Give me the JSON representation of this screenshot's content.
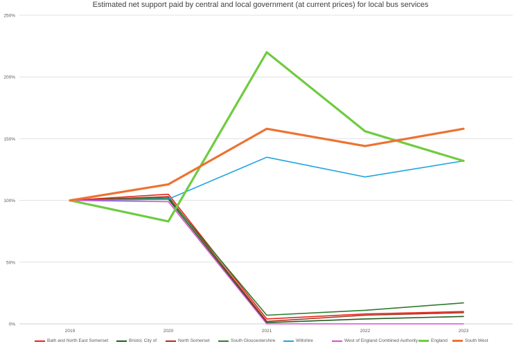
{
  "chart_data": {
    "type": "line",
    "title": "Estimated net support paid by central and local government (at current prices) for local bus services",
    "xlabel": "",
    "ylabel": "",
    "categories": [
      "2019",
      "2020",
      "2021",
      "2022",
      "2023"
    ],
    "ylim": [
      0,
      250
    ],
    "y_ticks": [
      "0%",
      "50%",
      "100%",
      "150%",
      "200%",
      "250%"
    ],
    "grid": "horizontal",
    "legend_position": "bottom",
    "series": [
      {
        "name": "Bath and North East Somerset",
        "color": "#e8231f",
        "width": 1.6,
        "values": [
          100,
          105,
          4,
          8,
          10
        ]
      },
      {
        "name": "Bristol, City of",
        "color": "#1e5c1e",
        "width": 1.6,
        "values": [
          100,
          101,
          1,
          4,
          6
        ]
      },
      {
        "name": "North Somerset",
        "color": "#a8321b",
        "width": 1.6,
        "values": [
          100,
          103,
          2,
          7,
          9
        ]
      },
      {
        "name": "South Gloucestershire",
        "color": "#2d7b2d",
        "width": 1.6,
        "values": [
          100,
          102,
          7,
          11,
          17
        ]
      },
      {
        "name": "Wiltshire",
        "color": "#1fa5e0",
        "width": 1.6,
        "values": [
          100,
          101,
          135,
          119,
          132
        ]
      },
      {
        "name": "West of England Combined Authority",
        "color": "#d94fcf",
        "width": 1.6,
        "values": [
          100,
          99,
          0,
          0,
          0
        ]
      },
      {
        "name": "England",
        "color": "#6fcb3f",
        "width": 3.2,
        "values": [
          100,
          83,
          220,
          156,
          132
        ]
      },
      {
        "name": "South West",
        "color": "#ed7232",
        "width": 3.2,
        "values": [
          100,
          113,
          158,
          144,
          158
        ]
      }
    ]
  }
}
